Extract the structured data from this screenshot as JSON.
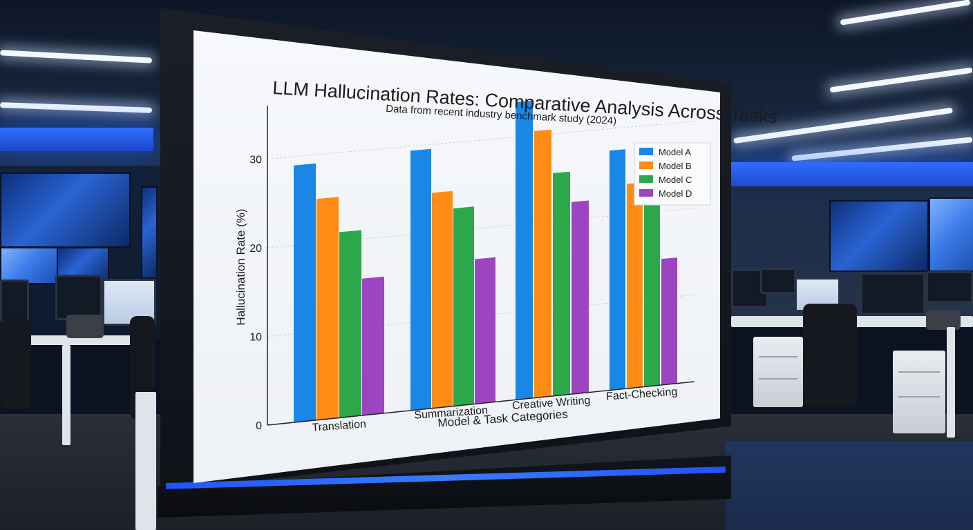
{
  "chart_data": {
    "type": "bar",
    "title": "LLM Hallucination Rates: Comparative Analysis Across Tasks",
    "subtitle": "Data from recent industry benchmark study (2024)",
    "xlabel": "Model & Task Categories",
    "ylabel": "Hallucination Rate (%)",
    "ylim": [
      0,
      35
    ],
    "yticks": [
      0,
      10,
      20,
      30
    ],
    "grid": true,
    "legend_position": "top-right",
    "categories": [
      "Translation",
      "Summarization",
      "Creative Writing",
      "Fact-Checking"
    ],
    "series": [
      {
        "name": "Model A",
        "color": "#1a87e6",
        "values": [
          29,
          29.5,
          34,
          27.5
        ]
      },
      {
        "name": "Model B",
        "color": "#ff8c14",
        "values": [
          25,
          24.5,
          30.5,
          23.5
        ]
      },
      {
        "name": "Model C",
        "color": "#2ba84a",
        "values": [
          21,
          22.5,
          25.5,
          21
        ]
      },
      {
        "name": "Model D",
        "color": "#9b45c0",
        "values": [
          15.5,
          16.5,
          22,
          14.5
        ]
      }
    ]
  }
}
